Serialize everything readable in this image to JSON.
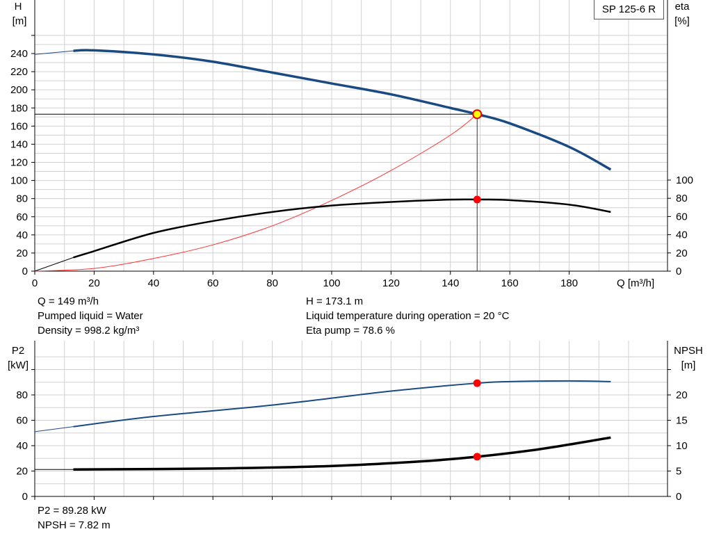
{
  "model": "SP 125-6 R",
  "top_chart": {
    "left_axis_title": [
      "H",
      "[m]"
    ],
    "right_axis_title": [
      "eta",
      "[%]"
    ],
    "x_axis_title": "Q [m³/h]"
  },
  "bottom_chart": {
    "left_axis_title": [
      "P2",
      "[kW]"
    ],
    "right_axis_title": [
      "NPSH",
      "[m]"
    ]
  },
  "info": {
    "q": "Q = 149 m³/h",
    "liquid": "Pumped liquid = Water",
    "density": "Density = 998.2 kg/m³",
    "h": "H = 173.1 m",
    "temperature": "Liquid temperature during operation = 20 °C",
    "eta": "Eta pump = 78.6 %",
    "p2": "P2 = 89.28 kW",
    "npsh": "NPSH = 7.82 m"
  },
  "colors": {
    "head_curve": "#1a4a82",
    "eta_curve": "#000000",
    "system_curve": "#ff3333",
    "p2_curve": "#1a4a82",
    "npsh_curve": "#000000",
    "grid": "#d0d0d0",
    "operating_point": "#ff0000",
    "duty_point_fill": "#ffff00"
  },
  "chart_data": [
    {
      "type": "line",
      "xlabel": "Q [m³/h]",
      "ylabel": "H [m]",
      "y2label": "eta [%]",
      "xlim": [
        0,
        200
      ],
      "ylim": [
        0,
        260
      ],
      "y2lim": [
        0,
        100
      ],
      "x_ticks": [
        0,
        20,
        40,
        60,
        80,
        100,
        120,
        140,
        160,
        180
      ],
      "y_ticks": [
        0,
        20,
        40,
        60,
        80,
        100,
        120,
        140,
        160,
        180,
        200,
        220,
        240
      ],
      "y2_ticks": [
        0,
        20,
        40,
        60,
        80,
        100
      ],
      "grid": true,
      "series": [
        {
          "axis": "left",
          "x": [
            0,
            13,
            20,
            40,
            60,
            80,
            100,
            120,
            140,
            149,
            160,
            180,
            194
          ],
          "values": [
            239,
            243,
            243.5,
            239,
            231,
            219,
            207,
            195,
            180,
            173.1,
            163,
            137,
            112
          ]
        },
        {
          "axis": "left",
          "x": [
            0,
            20,
            40,
            60,
            80,
            100,
            120,
            140,
            149
          ],
          "values": [
            0,
            3,
            14,
            29,
            50,
            78,
            111,
            150,
            173.1
          ]
        },
        {
          "axis": "right",
          "x": [
            0,
            13,
            20,
            40,
            60,
            80,
            100,
            120,
            140,
            149,
            160,
            180,
            194
          ],
          "values": [
            0,
            15,
            22,
            42,
            55,
            65,
            72,
            76,
            78.5,
            78.6,
            78,
            73,
            65
          ]
        }
      ],
      "operating_points": [
        {
          "x": 149,
          "y": 173.1,
          "axis": "left"
        },
        {
          "x": 149,
          "y": 78.6,
          "axis": "right"
        }
      ]
    },
    {
      "type": "line",
      "ylabel": "P2 [kW]",
      "y2label": "NPSH [m]",
      "xlim": [
        0,
        200
      ],
      "ylim": [
        0,
        100
      ],
      "y2lim": [
        0,
        25
      ],
      "y_ticks": [
        0,
        20,
        40,
        60,
        80
      ],
      "y2_ticks": [
        0,
        5,
        10,
        15,
        20
      ],
      "grid": true,
      "series": [
        {
          "axis": "left",
          "x": [
            0,
            13,
            40,
            80,
            120,
            149,
            160,
            180,
            194
          ],
          "values": [
            51,
            55,
            63,
            72,
            83,
            89.28,
            90.5,
            91,
            90.5
          ]
        },
        {
          "axis": "right",
          "x": [
            0,
            13,
            60,
            100,
            130,
            149,
            170,
            194
          ],
          "values": [
            5.3,
            5.3,
            5.5,
            6.0,
            6.9,
            7.82,
            9.3,
            11.6
          ]
        }
      ],
      "operating_points": [
        {
          "x": 149,
          "y": 89.28,
          "axis": "left"
        },
        {
          "x": 149,
          "y": 7.82,
          "axis": "right"
        }
      ]
    }
  ]
}
